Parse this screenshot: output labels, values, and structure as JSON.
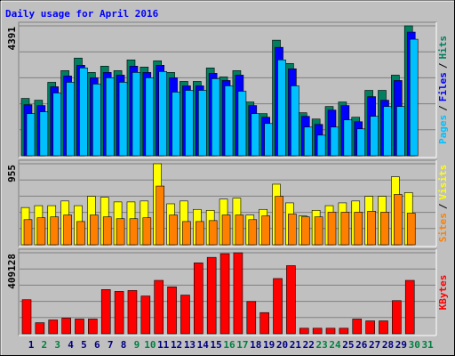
{
  "chart_data": [
    {
      "type": "bar",
      "title": "Daily usage for April 2016",
      "ylim": [
        0,
        4391
      ],
      "yticks": [
        4391
      ],
      "grid": true,
      "separator": "/",
      "series": [
        {
          "name": "Hits",
          "color": "#008060",
          "values": [
            1938,
            1877,
            2483,
            2877,
            3301,
            2816,
            3028,
            2877,
            3240,
            2998,
            3210,
            2816,
            2513,
            2513,
            2968,
            2665,
            2877,
            1817,
            1423,
            3906,
            3119,
            1453,
            1241,
            1665,
            1817,
            1302,
            2210,
            2210,
            2725,
            4391,
            null
          ]
        },
        {
          "name": "Files",
          "color": "#0000ff",
          "values": [
            1726,
            1696,
            2332,
            2695,
            3058,
            2634,
            2816,
            2725,
            3028,
            2816,
            3058,
            2634,
            2362,
            2362,
            2786,
            2543,
            2725,
            1696,
            1302,
            3664,
            2938,
            1332,
            1060,
            1544,
            1696,
            1150,
            1998,
            1877,
            2543,
            4179,
            null
          ]
        },
        {
          "name": "Pages",
          "color": "#00c0ff",
          "values": [
            1423,
            1484,
            2120,
            2483,
            2968,
            2422,
            2634,
            2483,
            2816,
            2634,
            2846,
            2150,
            2210,
            2210,
            2604,
            2362,
            2180,
            1423,
            1090,
            3240,
            2362,
            969,
            696,
            969,
            1211,
            908,
            1332,
            1665,
            1665,
            3937,
            null
          ]
        }
      ]
    },
    {
      "type": "bar",
      "ylim": [
        0,
        955
      ],
      "yticks": [
        955
      ],
      "grid": true,
      "separator": "/",
      "series": [
        {
          "name": "Visits",
          "color": "#ffff00",
          "values": [
            439,
            461,
            461,
            516,
            461,
            571,
            560,
            505,
            505,
            516,
            955,
            483,
            516,
            417,
            406,
            538,
            549,
            351,
            417,
            714,
            494,
            340,
            406,
            461,
            494,
            516,
            571,
            571,
            802,
            615,
            null
          ]
        },
        {
          "name": "Sites",
          "color": "#ff8000",
          "values": [
            296,
            318,
            329,
            351,
            274,
            351,
            329,
            307,
            307,
            318,
            692,
            351,
            274,
            274,
            285,
            351,
            351,
            296,
            340,
            571,
            362,
            329,
            329,
            384,
            384,
            384,
            395,
            384,
            593,
            373,
            null
          ]
        }
      ]
    },
    {
      "type": "bar",
      "ylim": [
        0,
        409128
      ],
      "yticks": [
        409128
      ],
      "grid": true,
      "categories": [
        "1",
        "2",
        "3",
        "4",
        "5",
        "6",
        "7",
        "8",
        "9",
        "10",
        "11",
        "12",
        "13",
        "14",
        "15",
        "16",
        "17",
        "18",
        "19",
        "20",
        "21",
        "22",
        "23",
        "24",
        "25",
        "26",
        "27",
        "28",
        "29",
        "30",
        "31"
      ],
      "category_colors": [
        "#000080",
        "#008040",
        "#008040",
        "#000080",
        "#000080",
        "#000080",
        "#000080",
        "#000080",
        "#008040",
        "#008040",
        "#000080",
        "#000080",
        "#000080",
        "#000080",
        "#000080",
        "#008040",
        "#008040",
        "#000080",
        "#000080",
        "#000080",
        "#000080",
        "#000080",
        "#008040",
        "#008040",
        "#000080",
        "#000080",
        "#000080",
        "#000080",
        "#000080",
        "#008040",
        "#008040"
      ],
      "series": [
        {
          "name": "KBytes",
          "color": "#ff0000",
          "values": [
            172013,
            55788,
            69735,
            79033,
            74384,
            74384,
            223152,
            213854,
            218503,
            190609,
            269642,
            237099,
            195258,
            357973,
            385867,
            404463,
            409128,
            162715,
            106927,
            278940,
            344026,
            27894,
            27894,
            27894,
            27894,
            74384,
            65086,
            65086,
            167364,
            269642,
            null
          ]
        }
      ]
    }
  ]
}
